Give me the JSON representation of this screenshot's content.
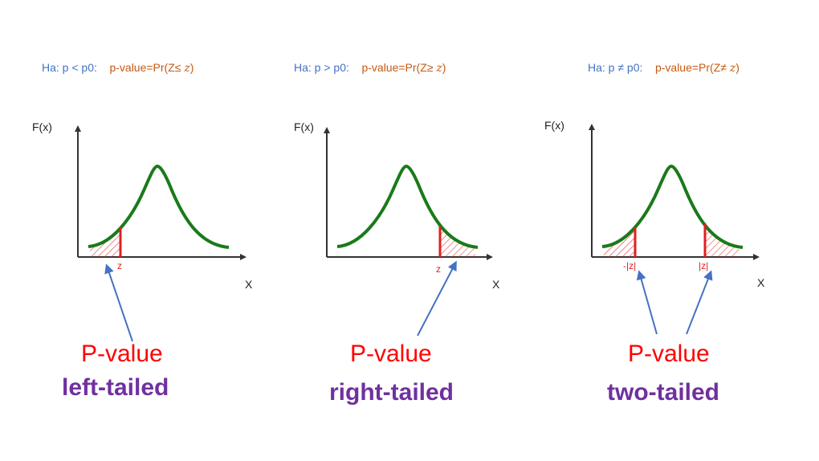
{
  "panels": [
    {
      "id": "left",
      "ha_text": "Ha: p < p0:",
      "pvalue_text": "p-value=Pr(Z≤ ",
      "pvalue_var": "z",
      "pvalue_close": ")",
      "y_label": "F(x)",
      "x_label": "X",
      "z_labels": [
        "z"
      ],
      "pvalue_label": "P-value",
      "tail_label": "left-tailed"
    },
    {
      "id": "right",
      "ha_text": "Ha: p > p0:",
      "pvalue_text": "p-value=Pr(Z≥ ",
      "pvalue_var": "z",
      "pvalue_close": ")",
      "y_label": "F(x)",
      "x_label": "X",
      "z_labels": [
        "z"
      ],
      "pvalue_label": "P-value",
      "tail_label": "right-tailed"
    },
    {
      "id": "two",
      "ha_text": "Ha: p ≠ p0:",
      "pvalue_text": "p-value=Pr(Z≠ ",
      "pvalue_var": "z",
      "pvalue_close": ")",
      "y_label": "F(x)",
      "x_label": "X",
      "z_labels": [
        "-|z|",
        "|z|"
      ],
      "pvalue_label": "P-value",
      "tail_label": "two-tailed"
    }
  ],
  "colors": {
    "hypothesis": "#4472c4",
    "pvalue_formula": "#c55a11",
    "curve": "#1a7a1a",
    "shade": "#e02020",
    "arrow": "#4472c4",
    "pvalue_label": "#ff0000",
    "tail_label": "#7030a0"
  }
}
